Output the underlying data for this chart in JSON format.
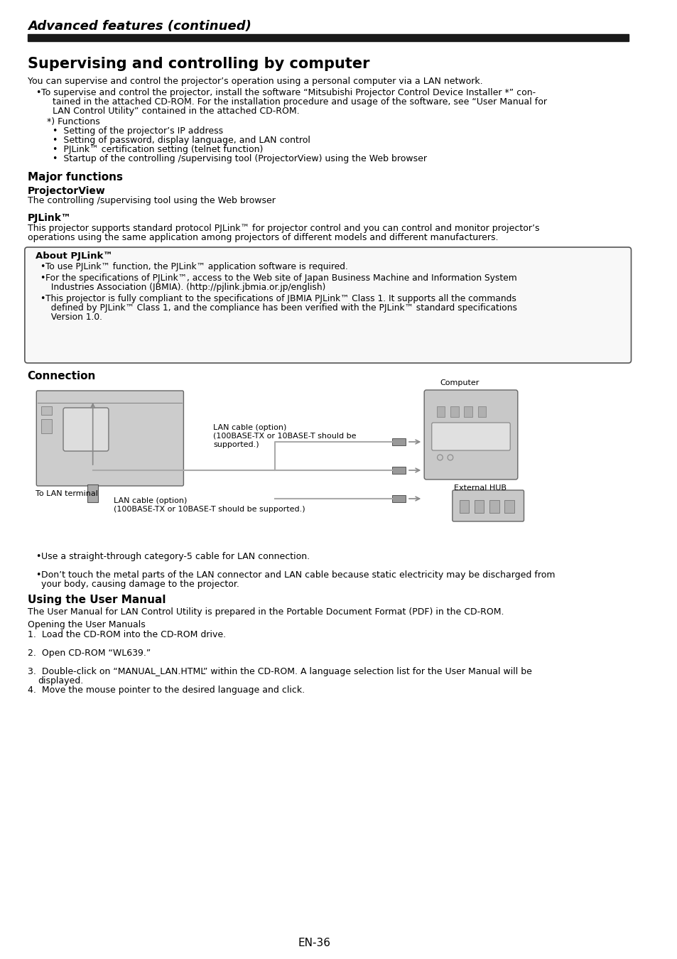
{
  "page_bg": "#ffffff",
  "title_italic": "Advanced features (continued)",
  "section_title": "Supervising and controlling by computer",
  "body_intro": "You can supervise and control the projector’s operation using a personal computer via a LAN network.",
  "bullet1": "To supervise and control the projector, install the software “Mitsubishi Projector Control Device Installer *” con-\n    tained in the attached CD-ROM. For the installation procedure and usage of the software, see “User Manual for\n    LAN Control Utility” contained in the attached CD-ROM.",
  "sub_label": "*) Functions",
  "sub_bullets": [
    "Setting of the projector’s IP address",
    "Setting of password, display language, and LAN control",
    "PJLink™ certification setting (telnet function)",
    "Startup of the controlling /supervising tool (ProjectorView) using the Web browser"
  ],
  "major_functions_title": "Major functions",
  "projectorview_label": "ProjectorView",
  "projectorview_text": "The controlling /supervising tool using the Web browser",
  "pjlink_label": "PJLink™",
  "pjlink_text": "This projector supports standard protocol PJLink™ for projector control and you can control and monitor projector’s\noperations using the same application among projectors of different models and different manufacturers.",
  "box_title": "About PJLink™",
  "box_bullets": [
    "To use PJLink™ function, the PJLink™ application software is required.",
    "For the specifications of PJLink™, access to the Web site of Japan Business Machine and Information System\n  Industries Association (JBMIA). (http://pjlink.jbmia.or.jp/english)",
    "This projector is fully compliant to the specifications of JBMIA PJLink™ Class 1. It supports all the commands\n  defined by PJLink™ Class 1, and the compliance has been verified with the PJLink™ standard specifications\n  Version 1.0."
  ],
  "connection_title": "Connection",
  "connection_bullets": [
    "Use a straight-through category-5 cable for LAN connection.",
    "Don’t touch the metal parts of the LAN connector and LAN cable because static electricity may be discharged from\nyour body, causing damage to the projector."
  ],
  "using_manual_title": "Using the User Manual",
  "using_manual_text": "The User Manual for LAN Control Utility is prepared in the Portable Document Format (PDF) in the CD-ROM.",
  "opening_label": "Opening the User Manuals",
  "numbered_steps": [
    "Load the CD-ROM into the CD-ROM drive.",
    "Open CD-ROM “WL639.”",
    "Double-click on “MANUAL_LAN.HTML” within the CD-ROM. A language selection list for the User Manual will be\ndisplayed.",
    "Move the mouse pointer to the desired language and click."
  ],
  "footer": "EN-36"
}
